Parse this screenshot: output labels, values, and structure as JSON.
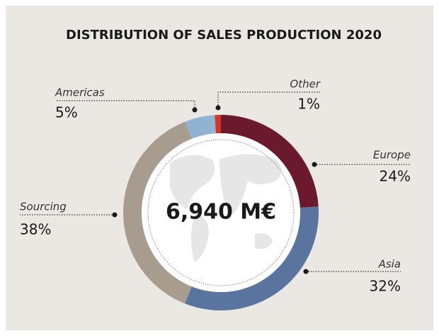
{
  "chart_data": {
    "type": "pie",
    "title": "DISTRIBUTION OF SALES PRODUCTION 2020",
    "center_label": "6,940 M€",
    "categories": [
      "Europe",
      "Asia",
      "Sourcing",
      "Americas",
      "Other"
    ],
    "values": [
      24,
      32,
      38,
      5,
      1
    ],
    "value_labels": [
      "24%",
      "32%",
      "38%",
      "5%",
      "1%"
    ],
    "colors": [
      "#6b1a2e",
      "#5a74a0",
      "#a89c8e",
      "#8fb3d0",
      "#d4352a"
    ]
  }
}
